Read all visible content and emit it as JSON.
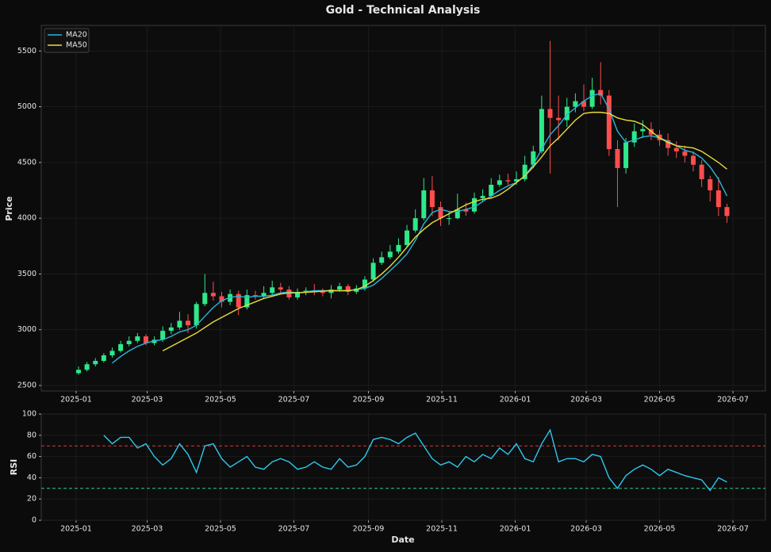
{
  "chart_data": {
    "type": "candlestick",
    "title": "Gold - Technical Analysis",
    "ylabel": "Price",
    "xlabel": "Date",
    "up_color": "#2ee88a",
    "down_color": "#ff4d4d",
    "grid": true,
    "legend": "upper left",
    "xlim": [
      "2024-12-03",
      "2026-07-28"
    ],
    "xticks": [
      {
        "value": "2025-01-01",
        "label": "2025-01"
      },
      {
        "value": "2025-03-01",
        "label": "2025-03"
      },
      {
        "value": "2025-05-01",
        "label": "2025-05"
      },
      {
        "value": "2025-07-01",
        "label": "2025-07"
      },
      {
        "value": "2025-09-01",
        "label": "2025-09"
      },
      {
        "value": "2025-11-01",
        "label": "2025-11"
      },
      {
        "value": "2026-01-01",
        "label": "2026-01"
      },
      {
        "value": "2026-03-01",
        "label": "2026-03"
      },
      {
        "value": "2026-05-01",
        "label": "2026-05"
      },
      {
        "value": "2026-07-01",
        "label": "2026-07"
      }
    ],
    "ylim": [
      2450,
      5730
    ],
    "yticks": [
      2500,
      3000,
      3500,
      4000,
      4500,
      5000,
      5500
    ],
    "x": [
      "2025-01-03",
      "2025-01-10",
      "2025-01-17",
      "2025-01-24",
      "2025-01-31",
      "2025-02-07",
      "2025-02-14",
      "2025-02-21",
      "2025-02-28",
      "2025-03-07",
      "2025-03-14",
      "2025-03-21",
      "2025-03-28",
      "2025-04-04",
      "2025-04-11",
      "2025-04-18",
      "2025-04-25",
      "2025-05-02",
      "2025-05-09",
      "2025-05-16",
      "2025-05-23",
      "2025-05-30",
      "2025-06-06",
      "2025-06-13",
      "2025-06-20",
      "2025-06-27",
      "2025-07-04",
      "2025-07-11",
      "2025-07-18",
      "2025-07-25",
      "2025-08-01",
      "2025-08-08",
      "2025-08-15",
      "2025-08-22",
      "2025-08-29",
      "2025-09-05",
      "2025-09-12",
      "2025-09-19",
      "2025-09-26",
      "2025-10-03",
      "2025-10-10",
      "2025-10-17",
      "2025-10-24",
      "2025-10-31",
      "2025-11-07",
      "2025-11-14",
      "2025-11-21",
      "2025-11-28",
      "2025-12-05",
      "2025-12-12",
      "2025-12-19",
      "2025-12-26",
      "2026-01-02",
      "2026-01-09",
      "2026-01-16",
      "2026-01-23",
      "2026-01-30",
      "2026-02-06",
      "2026-02-13",
      "2026-02-20",
      "2026-02-27",
      "2026-03-06",
      "2026-03-13",
      "2026-03-20",
      "2026-03-27",
      "2026-04-03",
      "2026-04-10",
      "2026-04-17",
      "2026-04-24",
      "2026-05-01",
      "2026-05-08",
      "2026-05-15",
      "2026-05-22",
      "2026-05-29",
      "2026-06-05",
      "2026-06-12",
      "2026-06-19",
      "2026-06-26"
    ],
    "open": [
      2610,
      2640,
      2690,
      2720,
      2770,
      2810,
      2870,
      2900,
      2940,
      2880,
      2910,
      2990,
      3020,
      3080,
      3040,
      3230,
      3330,
      3300,
      3250,
      3320,
      3200,
      3310,
      3300,
      3330,
      3380,
      3360,
      3290,
      3340,
      3350,
      3340,
      3330,
      3360,
      3390,
      3340,
      3370,
      3450,
      3600,
      3650,
      3700,
      3760,
      3890,
      4000,
      4250,
      4100,
      4000,
      4000,
      4080,
      4060,
      4180,
      4200,
      4300,
      4340,
      4330,
      4350,
      4480,
      4600,
      4980,
      4900,
      4880,
      5000,
      5050,
      5000,
      5150,
      5100,
      4620,
      4450,
      4680,
      4780,
      4800,
      4750,
      4700,
      4630,
      4600,
      4560,
      4480,
      4350,
      4250,
      4100
    ],
    "high": [
      2670,
      2710,
      2745,
      2790,
      2840,
      2900,
      2940,
      2970,
      2960,
      2940,
      3030,
      3060,
      3160,
      3140,
      3250,
      3500,
      3430,
      3340,
      3360,
      3350,
      3360,
      3350,
      3390,
      3440,
      3420,
      3390,
      3370,
      3380,
      3410,
      3370,
      3400,
      3420,
      3410,
      3400,
      3480,
      3640,
      3700,
      3760,
      3820,
      3940,
      4080,
      4360,
      4380,
      4150,
      4060,
      4220,
      4140,
      4230,
      4260,
      4360,
      4390,
      4400,
      4420,
      4560,
      4650,
      5100,
      5590,
      5100,
      5080,
      5120,
      5200,
      5260,
      5400,
      5150,
      4700,
      4720,
      4850,
      4880,
      4860,
      4790,
      4760,
      4690,
      4650,
      4600,
      4520,
      4380,
      4370,
      4130
    ],
    "low": [
      2595,
      2625,
      2670,
      2705,
      2750,
      2795,
      2850,
      2880,
      2860,
      2860,
      2890,
      2960,
      3000,
      2970,
      3010,
      3210,
      3260,
      3200,
      3220,
      3130,
      3180,
      3270,
      3280,
      3310,
      3320,
      3270,
      3270,
      3310,
      3310,
      3300,
      3280,
      3340,
      3310,
      3320,
      3350,
      3430,
      3580,
      3630,
      3680,
      3740,
      3870,
      3980,
      4020,
      3930,
      3940,
      3990,
      4020,
      4040,
      4150,
      4180,
      4280,
      4300,
      4300,
      4330,
      4450,
      4580,
      4400,
      4700,
      4820,
      4950,
      4960,
      4980,
      5020,
      4560,
      4100,
      4400,
      4640,
      4720,
      4700,
      4650,
      4560,
      4540,
      4500,
      4420,
      4280,
      4150,
      4020,
      3960
    ],
    "close": [
      2640,
      2690,
      2720,
      2770,
      2810,
      2870,
      2900,
      2940,
      2880,
      2910,
      2990,
      3020,
      3080,
      3040,
      3230,
      3330,
      3300,
      3250,
      3320,
      3200,
      3310,
      3300,
      3330,
      3380,
      3360,
      3290,
      3340,
      3350,
      3340,
      3330,
      3360,
      3390,
      3340,
      3370,
      3450,
      3600,
      3650,
      3700,
      3760,
      3890,
      4000,
      4250,
      4100,
      4000,
      4000,
      4080,
      4060,
      4180,
      4200,
      4300,
      4340,
      4330,
      4350,
      4480,
      4600,
      4980,
      4900,
      4880,
      5000,
      5050,
      5000,
      5150,
      5100,
      4620,
      4450,
      4680,
      4780,
      4800,
      4750,
      4700,
      4630,
      4600,
      4560,
      4480,
      4350,
      4250,
      4100,
      4020
    ],
    "series": [
      {
        "name": "MA20",
        "color": "#2bb5d8",
        "values": [
          null,
          null,
          null,
          null,
          2700,
          2760,
          2810,
          2850,
          2880,
          2900,
          2910,
          2940,
          2980,
          3000,
          3040,
          3120,
          3200,
          3260,
          3290,
          3300,
          3290,
          3300,
          3300,
          3310,
          3330,
          3340,
          3330,
          3340,
          3350,
          3350,
          3350,
          3350,
          3350,
          3360,
          3370,
          3400,
          3460,
          3530,
          3600,
          3680,
          3800,
          3950,
          4050,
          4080,
          4060,
          4060,
          4080,
          4100,
          4150,
          4200,
          4250,
          4290,
          4320,
          4380,
          4480,
          4620,
          4750,
          4830,
          4930,
          4990,
          5050,
          5100,
          5120,
          4980,
          4780,
          4680,
          4700,
          4730,
          4740,
          4720,
          4690,
          4650,
          4610,
          4590,
          4540,
          4460,
          4350,
          4200
        ]
      },
      {
        "name": "MA50",
        "color": "#e8dc3a",
        "values": [
          null,
          null,
          null,
          null,
          null,
          null,
          null,
          null,
          null,
          null,
          2810,
          2850,
          2890,
          2930,
          2970,
          3020,
          3070,
          3110,
          3150,
          3190,
          3220,
          3250,
          3280,
          3300,
          3320,
          3330,
          3330,
          3335,
          3340,
          3345,
          3350,
          3350,
          3350,
          3360,
          3390,
          3440,
          3500,
          3570,
          3650,
          3740,
          3830,
          3900,
          3960,
          4000,
          4040,
          4080,
          4120,
          4150,
          4170,
          4180,
          4210,
          4260,
          4320,
          4380,
          4460,
          4550,
          4650,
          4720,
          4800,
          4880,
          4940,
          4950,
          4950,
          4940,
          4900,
          4880,
          4870,
          4840,
          4780,
          4720,
          4680,
          4650,
          4640,
          4630,
          4600,
          4550,
          4500,
          4440
        ]
      }
    ],
    "rsi": {
      "ylabel": "RSI",
      "color": "#2ec8ee",
      "ylim": [
        0,
        100
      ],
      "yticks": [
        0,
        20,
        40,
        60,
        80,
        100
      ],
      "levels": [
        {
          "value": 70,
          "color": "#d93a3a"
        },
        {
          "value": 30,
          "color": "#2ecf8a"
        }
      ],
      "values": [
        null,
        null,
        null,
        80,
        72,
        78,
        78,
        68,
        72,
        60,
        52,
        58,
        72,
        62,
        45,
        70,
        72,
        58,
        50,
        55,
        60,
        50,
        48,
        55,
        58,
        55,
        48,
        50,
        55,
        50,
        48,
        58,
        50,
        52,
        60,
        76,
        78,
        76,
        72,
        78,
        82,
        70,
        58,
        52,
        55,
        50,
        60,
        55,
        62,
        58,
        68,
        62,
        72,
        58,
        55,
        72,
        85,
        55,
        58,
        58,
        55,
        62,
        60,
        40,
        30,
        42,
        48,
        52,
        48,
        42,
        48,
        45,
        42,
        40,
        38,
        28,
        40,
        36
      ]
    }
  }
}
